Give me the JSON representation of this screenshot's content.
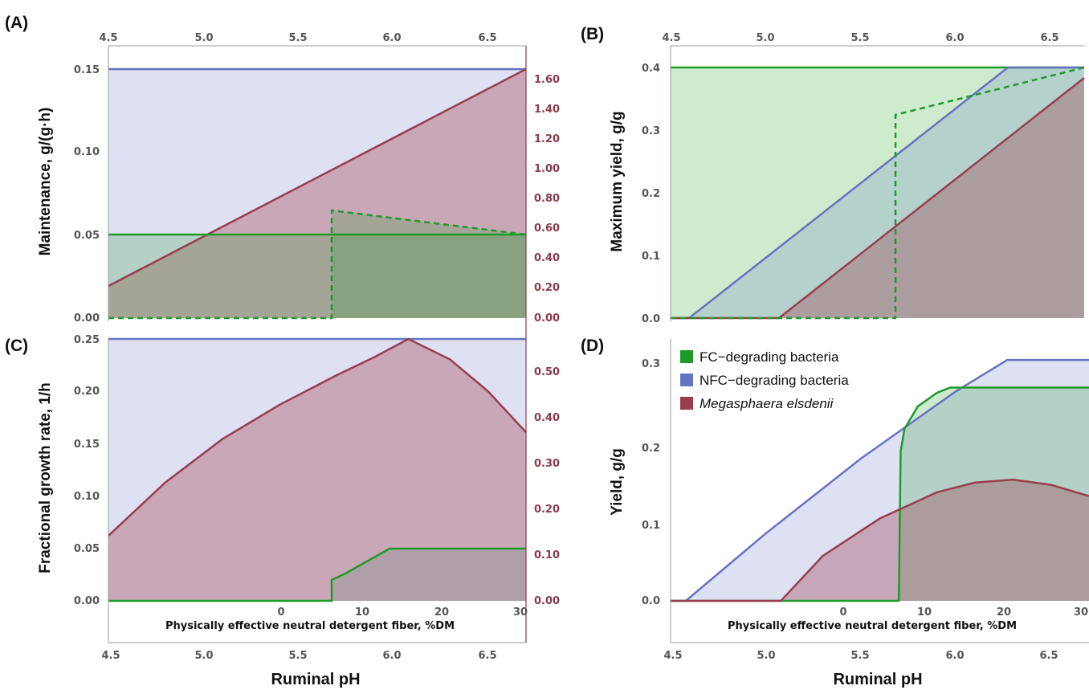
{
  "colors": {
    "fc": "#1e9a28",
    "nfc": "#6673c2",
    "me": "#9a3d4d",
    "fc_fill": "#8fd490",
    "nfc_fill": "#dde1f3",
    "me_fill": "#c9a7b7",
    "axis": "#999999",
    "red_axis": "#8b3a4a"
  },
  "figure": {
    "legend": {
      "items": [
        {
          "label": "FC−degrading bacteria",
          "color": "#1e9a28",
          "italic": false
        },
        {
          "label": "NFC−degrading bacteria",
          "color": "#6673c2",
          "italic": false
        },
        {
          "label": "Megasphaera elsdenii",
          "color": "#9a3d4d",
          "italic": true
        }
      ]
    }
  },
  "chart_data": [
    {
      "panel": "(A)",
      "type": "area",
      "ylabel": "Maintenance, g/(g·h)",
      "xlabel_top": "",
      "x_axis": {
        "label": "Ruminal pH",
        "range": [
          4.5,
          6.7
        ],
        "ticks": [
          "4.5",
          "5.0",
          "5.5",
          "6.0",
          "6.5"
        ]
      },
      "ylim": [
        0,
        0.15
      ],
      "y_ticks": [
        "0.00",
        "0.05",
        "0.10",
        "0.15"
      ],
      "right_axis": {
        "range": [
          0,
          1.7
        ],
        "ticks": [
          "0.00",
          "0.20",
          "0.40",
          "0.60",
          "0.80",
          "1.00",
          "1.20",
          "1.40",
          "1.60"
        ]
      },
      "series": [
        {
          "name": "NFC−degrading bacteria",
          "axis": "left",
          "x": [
            4.5,
            6.7
          ],
          "y": [
            0.15,
            0.15
          ]
        },
        {
          "name": "Megasphaera elsdenii",
          "axis": "right",
          "x": [
            4.5,
            6.7
          ],
          "y": [
            0.21,
            1.7
          ]
        },
        {
          "name": "FC−degrading bacteria",
          "axis": "left",
          "x": [
            4.5,
            6.7
          ],
          "y": [
            0.05,
            0.05
          ]
        },
        {
          "name": "FC−degrading bacteria (peNDF)",
          "axis": "left",
          "dashed": true,
          "x": [
            4.5,
            5.67,
            5.67,
            6.7
          ],
          "y": [
            0,
            0,
            0.064,
            0.05
          ]
        }
      ]
    },
    {
      "panel": "(B)",
      "type": "area",
      "ylabel": "Maximum yield, g/g",
      "x_axis": {
        "label": "Ruminal pH",
        "range": [
          4.5,
          6.7
        ],
        "ticks": [
          "4.5",
          "5.0",
          "5.5",
          "6.0",
          "6.5"
        ]
      },
      "ylim": [
        0,
        0.4
      ],
      "y_ticks": [
        "0.0",
        "0.1",
        "0.2",
        "0.3",
        "0.4"
      ],
      "series": [
        {
          "name": "FC−degrading bacteria",
          "x": [
            4.5,
            6.7
          ],
          "y": [
            0.4,
            0.4
          ]
        },
        {
          "name": "FC−degrading bacteria (peNDF)",
          "dashed": true,
          "x": [
            4.5,
            5.7,
            5.7,
            6.7
          ],
          "y": [
            0,
            0,
            0.325,
            0.4
          ]
        },
        {
          "name": "NFC−degrading bacteria",
          "x": [
            4.5,
            4.6,
            6.3,
            6.7
          ],
          "y": [
            0,
            0,
            0.4,
            0.4
          ]
        },
        {
          "name": "Megasphaera elsdenii",
          "x": [
            4.5,
            5.08,
            6.7
          ],
          "y": [
            0,
            0,
            0.384
          ]
        }
      ]
    },
    {
      "panel": "(C)",
      "type": "area",
      "ylabel": "Fractional growth rate, 1/h",
      "x_axis": {
        "label": "Ruminal pH",
        "range": [
          4.5,
          6.7
        ],
        "ticks": [
          "4.5",
          "5.0",
          "5.5",
          "6.0",
          "6.5"
        ]
      },
      "x_axis_inner": {
        "label": "Physically effective neutral detergent fiber, %DM",
        "range": [
          -30,
          30
        ],
        "ticks": [
          "0",
          "10",
          "20",
          "30"
        ]
      },
      "ylim": [
        0,
        0.25
      ],
      "y_ticks": [
        "0.00",
        "0.05",
        "0.10",
        "0.15",
        "0.20",
        "0.25"
      ],
      "right_axis": {
        "range": [
          0,
          0.575
        ],
        "ticks": [
          "0.00",
          "0.10",
          "0.20",
          "0.30",
          "0.40",
          "0.50"
        ]
      },
      "series": [
        {
          "name": "NFC−degrading bacteria",
          "axis": "left",
          "x": [
            4.5,
            6.7
          ],
          "y": [
            0.25,
            0.25
          ]
        },
        {
          "name": "Megasphaera elsdenii",
          "axis": "right",
          "x": [
            4.5,
            4.8,
            5.1,
            5.4,
            5.7,
            5.9,
            6.08,
            6.3,
            6.5,
            6.7
          ],
          "y": [
            0.143,
            0.26,
            0.355,
            0.43,
            0.495,
            0.535,
            0.575,
            0.53,
            0.46,
            0.37
          ]
        },
        {
          "name": "FC−degrading bacteria",
          "axis": "left",
          "x": [
            4.5,
            5.7,
            5.7,
            5.8,
            6.0,
            6.7
          ],
          "y": [
            0,
            0,
            0.02,
            0.033,
            0.05,
            0.05
          ]
        }
      ]
    },
    {
      "panel": "(D)",
      "type": "area",
      "ylabel": "Yield, g/g",
      "x_axis": {
        "label": "Ruminal pH",
        "range": [
          4.5,
          6.7
        ],
        "ticks": [
          "4.5",
          "5.0",
          "5.5",
          "6.0",
          "6.5"
        ]
      },
      "x_axis_inner": {
        "label": "Physically effective neutral detergent fiber, %DM",
        "ticks": [
          "0",
          "10",
          "20",
          "30"
        ]
      },
      "ylim": [
        0,
        0.35
      ],
      "y_ticks": [
        "0.0",
        "0.1",
        "0.2",
        "0.3"
      ],
      "series": [
        {
          "name": "NFC−degrading bacteria",
          "x": [
            4.5,
            4.58,
            5.0,
            5.5,
            6.0,
            6.27,
            6.7
          ],
          "y": [
            0,
            0,
            0.09,
            0.19,
            0.28,
            0.322,
            0.322
          ]
        },
        {
          "name": "FC−degrading bacteria",
          "x": [
            4.5,
            5.7,
            5.71,
            5.73,
            5.8,
            5.9,
            5.97,
            6.7
          ],
          "y": [
            0,
            0,
            0.2,
            0.23,
            0.26,
            0.278,
            0.285,
            0.285
          ]
        },
        {
          "name": "Megasphaera elsdenii",
          "x": [
            4.5,
            5.08,
            5.3,
            5.6,
            5.9,
            6.1,
            6.3,
            6.5,
            6.7
          ],
          "y": [
            0,
            0,
            0.06,
            0.11,
            0.145,
            0.158,
            0.162,
            0.155,
            0.14
          ]
        }
      ]
    }
  ],
  "labels": {
    "panelA": "(A)",
    "panelB": "(B)",
    "panelC": "(C)",
    "panelD": "(D)",
    "ylabelA": "Maintenance, g/(g·h)",
    "ylabelB": "Maximum yield, g/g",
    "ylabelC": "Fractional growth rate, 1/h",
    "ylabelD": "Yield, g/g",
    "bottom_left": "Ruminal pH",
    "bottom_right": "Ruminal pH",
    "inner_left": "Physically effective neutral detergent fiber, %DM",
    "inner_right": "Physically effective neutral detergent fiber, %DM"
  }
}
